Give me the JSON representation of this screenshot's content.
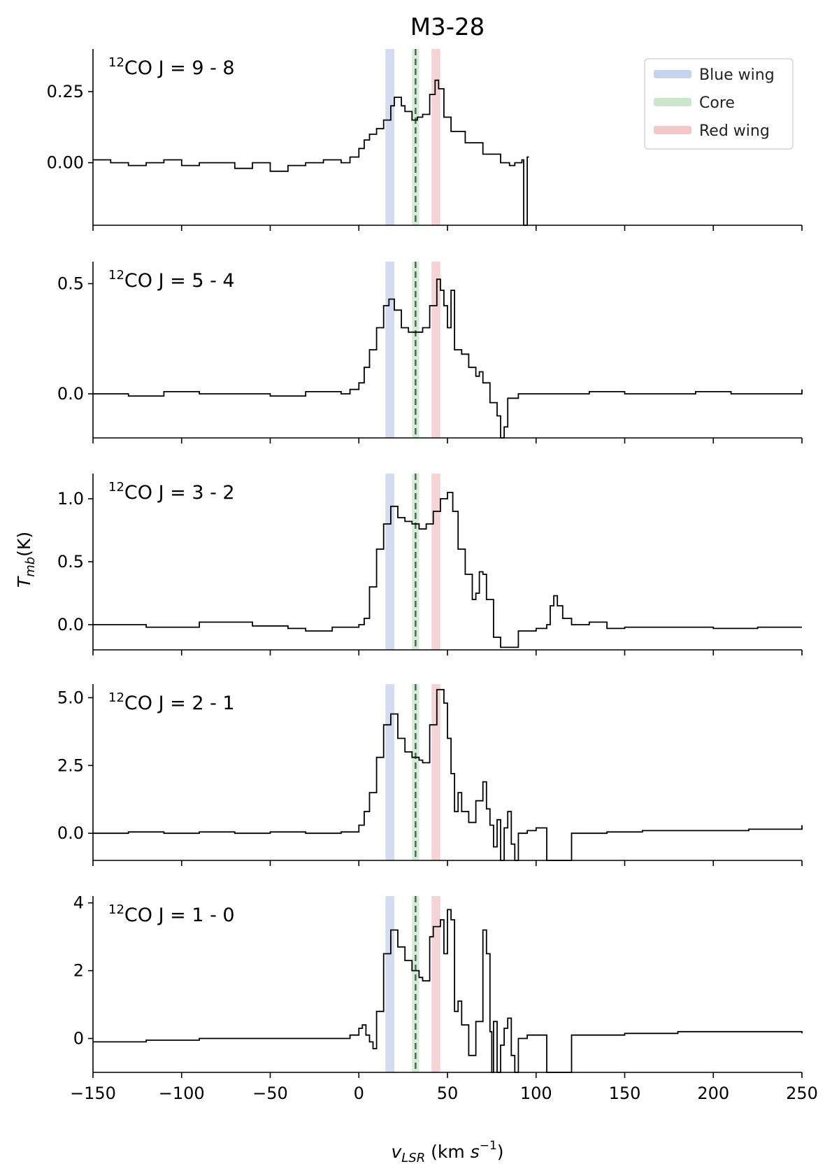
{
  "figure_title": "M3-28",
  "y_label": {
    "main": "T",
    "sub": "mb",
    "unit": "(K)"
  },
  "x_label": {
    "main": "v",
    "sub": "LSR",
    "unit_open": " (km ",
    "unit_s": "s",
    "unit_exp": "−1",
    "unit_close": ")"
  },
  "legend": [
    {
      "label": "Blue wing",
      "color": "#aec0e4"
    },
    {
      "label": "Core",
      "color": "#b5dcb5"
    },
    {
      "label": "Red wing",
      "color": "#eeb0b2"
    }
  ],
  "chart_data": [
    {
      "type": "line",
      "transition": "J = 9 - 8",
      "ylim": [
        -0.22,
        0.4
      ],
      "yticks": [
        0.25,
        0.0
      ],
      "ytick_labels": [
        "0.25",
        "0.00"
      ],
      "x": [
        -150,
        -140,
        -130,
        -120,
        -110,
        -100,
        -90,
        -80,
        -70,
        -60,
        -50,
        -40,
        -30,
        -20,
        -10,
        -5,
        0,
        3,
        6,
        10,
        14,
        18,
        20,
        24,
        26,
        30,
        33,
        36,
        40,
        43,
        45,
        48,
        52,
        60,
        70,
        80,
        85,
        88,
        92,
        93,
        94,
        95,
        96
      ],
      "y": [
        0.01,
        0.0,
        -0.01,
        0.0,
        0.01,
        -0.01,
        0.0,
        0.0,
        -0.02,
        0.0,
        -0.03,
        -0.01,
        0.0,
        0.01,
        0.0,
        0.02,
        0.05,
        0.08,
        0.1,
        0.12,
        0.15,
        0.2,
        0.23,
        0.2,
        0.18,
        0.15,
        0.16,
        0.17,
        0.24,
        0.29,
        0.26,
        0.16,
        0.11,
        0.07,
        0.03,
        0.0,
        -0.01,
        0.0,
        0.01,
        -0.22,
        -0.22,
        0.02,
        0.02
      ]
    },
    {
      "type": "line",
      "transition": "J = 5 - 4",
      "ylim": [
        -0.2,
        0.6
      ],
      "yticks": [
        0.5,
        0.0
      ],
      "ytick_labels": [
        "0.5",
        "0.0"
      ],
      "x": [
        -150,
        -130,
        -110,
        -90,
        -70,
        -50,
        -30,
        -10,
        -5,
        0,
        3,
        6,
        10,
        14,
        17,
        20,
        24,
        28,
        32,
        36,
        40,
        44,
        46,
        48,
        50,
        52,
        54,
        58,
        62,
        66,
        68,
        70,
        74,
        78,
        80,
        82,
        84,
        90,
        110,
        130,
        150,
        170,
        190,
        210,
        230,
        250
      ],
      "y": [
        0.0,
        -0.01,
        0.01,
        0.0,
        0.0,
        -0.01,
        0.01,
        0.0,
        0.02,
        0.05,
        0.12,
        0.2,
        0.3,
        0.4,
        0.43,
        0.38,
        0.3,
        0.28,
        0.28,
        0.3,
        0.4,
        0.52,
        0.47,
        0.4,
        0.3,
        0.47,
        0.2,
        0.18,
        0.12,
        0.08,
        0.1,
        0.05,
        -0.04,
        -0.1,
        -0.2,
        -0.15,
        -0.02,
        0.0,
        0.0,
        0.01,
        0.0,
        0.0,
        0.01,
        0.0,
        0.0,
        0.02
      ]
    },
    {
      "type": "line",
      "transition": "J = 3 - 2",
      "ylim": [
        -0.2,
        1.2
      ],
      "yticks": [
        1.0,
        0.5,
        0.0
      ],
      "ytick_labels": [
        "1.0",
        "0.5",
        "0.0"
      ],
      "x": [
        -150,
        -120,
        -90,
        -60,
        -40,
        -30,
        -15,
        0,
        3,
        6,
        10,
        14,
        18,
        22,
        26,
        30,
        34,
        38,
        42,
        46,
        50,
        53,
        56,
        60,
        64,
        66,
        68,
        70,
        72,
        76,
        80,
        85,
        90,
        100,
        106,
        108,
        110,
        112,
        115,
        120,
        130,
        140,
        150,
        175,
        200,
        225,
        250
      ],
      "y": [
        0.0,
        -0.02,
        0.02,
        -0.01,
        -0.03,
        -0.05,
        -0.02,
        0.0,
        0.05,
        0.3,
        0.6,
        0.8,
        0.94,
        0.85,
        0.82,
        0.8,
        0.76,
        0.8,
        0.9,
        1.0,
        1.05,
        0.9,
        0.6,
        0.4,
        0.2,
        0.25,
        0.42,
        0.4,
        0.2,
        -0.1,
        -0.18,
        -0.18,
        -0.05,
        -0.03,
        0.0,
        0.15,
        0.23,
        0.15,
        0.05,
        0.0,
        0.02,
        -0.03,
        -0.02,
        -0.02,
        -0.03,
        -0.02,
        -0.02
      ]
    },
    {
      "type": "line",
      "transition": "J = 2 - 1",
      "ylim": [
        -1.0,
        5.5
      ],
      "yticks": [
        5.0,
        2.5,
        0.0
      ],
      "ytick_labels": [
        "5.0",
        "2.5",
        "0.0"
      ],
      "x": [
        -150,
        -130,
        -110,
        -90,
        -70,
        -50,
        -30,
        -10,
        0,
        3,
        6,
        10,
        14,
        18,
        22,
        26,
        30,
        34,
        36,
        40,
        44,
        48,
        50,
        52,
        54,
        56,
        58,
        62,
        66,
        70,
        72,
        74,
        76,
        78,
        80,
        82,
        84,
        86,
        88,
        90,
        95,
        100,
        105,
        106,
        107,
        119,
        120,
        121,
        140,
        160,
        180,
        200,
        220,
        240,
        250
      ],
      "y": [
        0.0,
        0.05,
        0.0,
        0.05,
        0.0,
        0.05,
        0.0,
        0.05,
        0.3,
        0.8,
        1.5,
        2.8,
        4.0,
        4.4,
        3.5,
        3.0,
        2.8,
        2.7,
        2.6,
        4.0,
        5.3,
        4.8,
        3.5,
        2.2,
        0.8,
        1.5,
        0.8,
        0.4,
        1.2,
        1.9,
        0.9,
        0.3,
        -0.5,
        0.5,
        -1.0,
        0.2,
        0.8,
        -0.4,
        -1.0,
        0.0,
        0.1,
        0.2,
        0.2,
        -1.0,
        -1.0,
        -1.0,
        0.0,
        0.0,
        0.05,
        0.1,
        0.1,
        0.1,
        0.15,
        0.15,
        0.3
      ]
    },
    {
      "type": "line",
      "transition": "J = 1 - 0",
      "ylim": [
        -1.0,
        4.2
      ],
      "yticks": [
        4,
        2,
        0
      ],
      "ytick_labels": [
        "4",
        "2",
        "0"
      ],
      "x": [
        -150,
        -120,
        -90,
        -60,
        -30,
        -5,
        0,
        2,
        4,
        6,
        8,
        10,
        14,
        18,
        22,
        26,
        30,
        34,
        36,
        40,
        42,
        46,
        48,
        50,
        52,
        54,
        56,
        58,
        62,
        66,
        70,
        72,
        74,
        75,
        76,
        78,
        80,
        82,
        84,
        86,
        88,
        90,
        95,
        100,
        105,
        106,
        107,
        119,
        120,
        121,
        150,
        180,
        210,
        240,
        250
      ],
      "y": [
        -0.1,
        -0.05,
        0.0,
        0.0,
        0.0,
        0.1,
        0.3,
        0.4,
        0.1,
        -0.1,
        -0.3,
        0.8,
        2.5,
        3.2,
        2.7,
        2.3,
        2.0,
        1.8,
        1.7,
        3.0,
        3.3,
        3.5,
        2.5,
        3.8,
        3.5,
        0.8,
        1.1,
        0.4,
        -0.5,
        0.5,
        3.2,
        2.5,
        0.2,
        -1.0,
        0.5,
        -1.0,
        -0.2,
        0.3,
        0.6,
        -0.5,
        -1.0,
        0.0,
        0.1,
        0.1,
        0.1,
        -1.0,
        -1.0,
        -1.0,
        0.1,
        0.1,
        0.15,
        0.2,
        0.2,
        0.2,
        0.15
      ]
    }
  ],
  "shared_axes": {
    "xlim": [
      -150,
      250
    ],
    "xticks": [
      -150,
      -100,
      -50,
      0,
      50,
      100,
      150,
      200,
      250
    ],
    "xtick_labels": [
      "−150",
      "−100",
      "−50",
      "0",
      "50",
      "100",
      "150",
      "200",
      "250"
    ]
  },
  "bands": {
    "blue_wing": [
      15,
      20
    ],
    "core": [
      30,
      34
    ],
    "red_wing": [
      41,
      46
    ],
    "center_line": 32
  }
}
